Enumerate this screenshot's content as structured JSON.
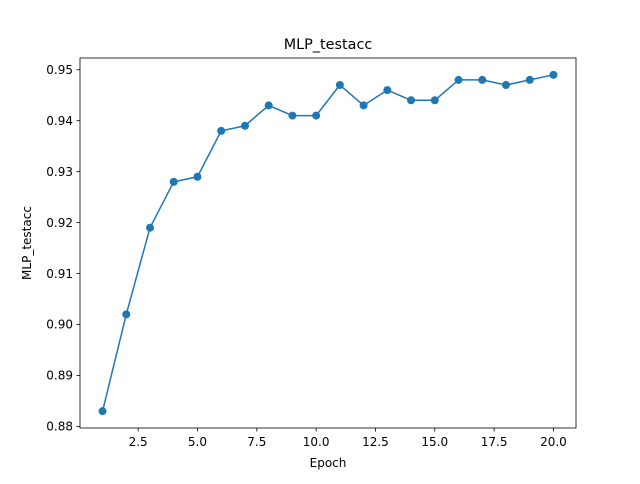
{
  "chart_data": {
    "type": "line",
    "title": "MLP_testacc",
    "xlabel": "Epoch",
    "ylabel": "MLP_testacc",
    "xlim": [
      0.05,
      20.95
    ],
    "ylim": [
      0.8797,
      0.9523
    ],
    "xticks": [
      2.5,
      5.0,
      7.5,
      10.0,
      12.5,
      15.0,
      17.5,
      20.0
    ],
    "xtick_labels": [
      "2.5",
      "5.0",
      "7.5",
      "10.0",
      "12.5",
      "15.0",
      "17.5",
      "20.0"
    ],
    "yticks": [
      0.88,
      0.89,
      0.9,
      0.91,
      0.92,
      0.93,
      0.94,
      0.95
    ],
    "ytick_labels": [
      "0.88",
      "0.89",
      "0.90",
      "0.91",
      "0.92",
      "0.93",
      "0.94",
      "0.95"
    ],
    "grid": false,
    "legend": "none",
    "series": [
      {
        "color": "#1f77b4",
        "marker": "circle",
        "x": [
          1,
          2,
          3,
          4,
          5,
          6,
          7,
          8,
          9,
          10,
          11,
          12,
          13,
          14,
          15,
          16,
          17,
          18,
          19,
          20
        ],
        "y": [
          0.883,
          0.902,
          0.919,
          0.928,
          0.929,
          0.938,
          0.939,
          0.943,
          0.941,
          0.941,
          0.947,
          0.943,
          0.946,
          0.944,
          0.944,
          0.948,
          0.948,
          0.947,
          0.948,
          0.949
        ]
      }
    ]
  }
}
